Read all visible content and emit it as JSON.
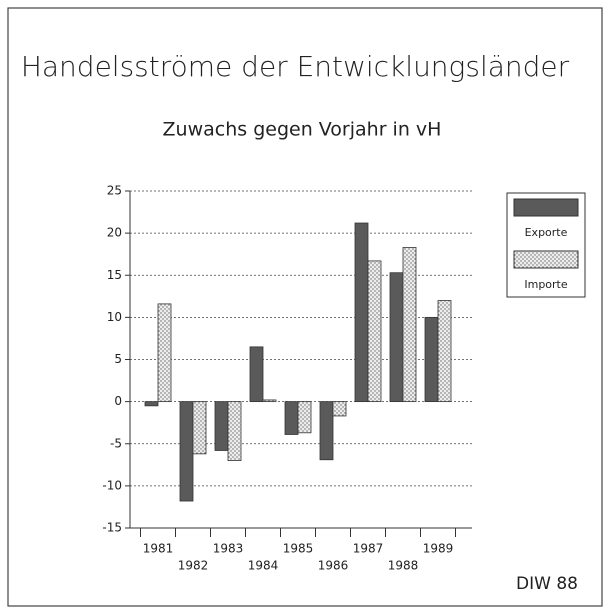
{
  "chart_data": {
    "type": "bar",
    "title": "Handelsströme der Entwicklungsländer",
    "subtitle": "Zuwachs gegen Vorjahr in vH",
    "categories": [
      "1981",
      "1982",
      "1983",
      "1984",
      "1985",
      "1986",
      "1987",
      "1988",
      "1989"
    ],
    "series": [
      {
        "name": "Exporte",
        "color": "#5a5a5a",
        "values": [
          -0.5,
          -11.8,
          -5.8,
          6.5,
          -3.9,
          -6.9,
          21.2,
          15.3,
          10.0
        ]
      },
      {
        "name": "Importe",
        "color": "#ececec",
        "values": [
          11.6,
          -6.2,
          -7.0,
          0.2,
          -3.7,
          -1.7,
          16.7,
          18.3,
          12.0
        ]
      }
    ],
    "ylim": [
      -15,
      25
    ],
    "yticks": [
      -15,
      -10,
      -5,
      0,
      5,
      10,
      15,
      20,
      25
    ],
    "grid": true,
    "legend": "right",
    "source": "DIW 88"
  }
}
